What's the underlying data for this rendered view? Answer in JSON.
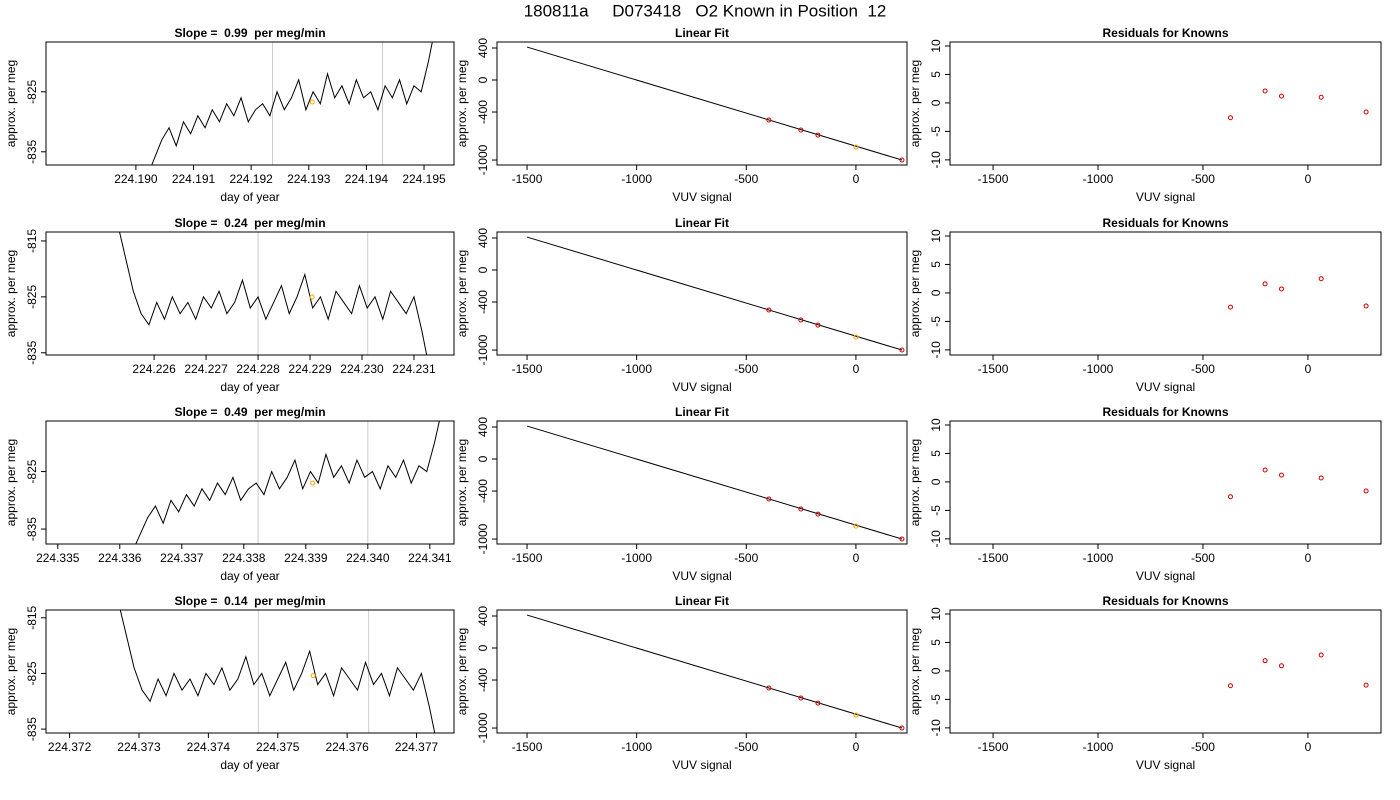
{
  "title": "180811a     D073418   O2 Known in Position  12",
  "chart_data": [
    {
      "type": "line",
      "title": "Slope =  0.99  per meg/min",
      "xlabel": "day of year",
      "ylabel": "approx. per meg",
      "xlim": [
        224.18844,
        224.19552
      ],
      "ylim": [
        -837.2,
        -816.7
      ],
      "xticks": [
        {
          "value": 224.19,
          "label": "224.190"
        },
        224.191,
        224.192,
        224.193,
        224.194,
        224.195
      ],
      "yticks": [
        -835,
        -825
      ],
      "x": [
        224.1902,
        224.190325,
        224.19045,
        224.190575,
        224.1907,
        224.190825,
        224.19095,
        224.191075,
        224.1912,
        224.191325,
        224.19145,
        224.191575,
        224.1917,
        224.191825,
        224.19195,
        224.192075,
        224.1922,
        224.192325,
        224.19245,
        224.192575,
        224.1927,
        224.192825,
        224.19295,
        224.193075,
        224.1932,
        224.193325,
        224.19345,
        224.193575,
        224.1937,
        224.193825,
        224.19395,
        224.194075,
        224.1942,
        224.194325,
        224.19445,
        224.194575,
        224.1947,
        224.194825,
        224.19495,
        224.195075,
        224.1952
      ],
      "values": [
        -839,
        -836,
        -833,
        -831,
        -834,
        -830,
        -832,
        -829,
        -831,
        -828,
        -830,
        -827,
        -829,
        -826,
        -830,
        -828,
        -827,
        -829,
        -825,
        -828,
        -826,
        -823,
        -828,
        -825,
        -827,
        -822,
        -826,
        -824,
        -827,
        -823,
        -826,
        -825,
        -828,
        -824,
        -826,
        -823,
        -827,
        -824,
        -825,
        -820,
        -814
      ],
      "color": "#000000",
      "vlines": [
        224.19237,
        224.19428
      ],
      "vline_color": "#cccccc",
      "highlight": {
        "x": 224.19306,
        "y": -826.7,
        "color": "#ffa500"
      }
    },
    {
      "type": "scatter",
      "title": "Linear Fit",
      "xlabel": "VUV signal",
      "ylabel": "approx. per meg",
      "xlim": [
        -1637,
        233
      ],
      "ylim": [
        -1062,
        475
      ],
      "xticks": [
        -1500,
        -1000,
        -500,
        0
      ],
      "yticks": [
        -1000,
        -400,
        0,
        400
      ],
      "x": [
        -397,
        -251,
        -173,
        0,
        210
      ],
      "values": [
        -500,
        -625,
        -688,
        -838,
        -1000
      ],
      "point_colors": [
        "#cc0000",
        "#cc0000",
        "#cc0000",
        "#ffa500",
        "#cc0000"
      ],
      "fit": {
        "x": [
          -1500,
          210
        ],
        "y": [
          412,
          -1000
        ],
        "color": "#000000"
      }
    },
    {
      "type": "scatter",
      "title": "Residuals for Knowns",
      "xlabel": "VUV signal",
      "ylabel": "approx. per meg",
      "xlim": [
        -1705,
        348
      ],
      "ylim": [
        -10.9,
        10.7
      ],
      "xticks": [
        -1500,
        -1000,
        -500,
        0
      ],
      "yticks": [
        -10,
        -5,
        0,
        5,
        10
      ],
      "x": [
        -369,
        -204,
        -126,
        63,
        277
      ],
      "values": [
        -2.6,
        2.1,
        1.2,
        1.0,
        -1.6
      ],
      "point_colors": [
        "#cc0000",
        "#cc0000",
        "#cc0000",
        "#cc0000",
        "#cc0000"
      ]
    },
    {
      "type": "line",
      "title": "Slope =  0.24  per meg/min",
      "xlabel": "day of year",
      "ylabel": "approx. per meg",
      "xlim": [
        224.22392,
        224.23177
      ],
      "ylim": [
        -835.4,
        -813.4
      ],
      "xticks": [
        224.226,
        224.227,
        224.228,
        224.229,
        {
          "value": 224.23,
          "label": "224.230"
        },
        224.231
      ],
      "yticks": [
        -835,
        -825,
        -815
      ],
      "x": [
        224.2253,
        224.22545,
        224.2256,
        224.22575,
        224.2259,
        224.22605,
        224.2262,
        224.22635,
        224.2265,
        224.22665,
        224.2268,
        224.22695,
        224.2271,
        224.22725,
        224.2274,
        224.22755,
        224.2277,
        224.22785,
        224.228,
        224.22815,
        224.2283,
        224.22845,
        224.2286,
        224.22875,
        224.2289,
        224.22905,
        224.2292,
        224.22935,
        224.2295,
        224.22965,
        224.2298,
        224.22995,
        224.2301,
        224.23025,
        224.2304,
        224.23055,
        224.2307,
        224.23085,
        224.231,
        224.23115,
        224.2313
      ],
      "values": [
        -812,
        -818,
        -824,
        -828,
        -830,
        -826,
        -829,
        -825,
        -828,
        -826,
        -829,
        -825,
        -827,
        -824,
        -828,
        -826,
        -822,
        -827,
        -825,
        -829,
        -826,
        -823,
        -828,
        -825,
        -821,
        -827,
        -825,
        -829,
        -824,
        -826,
        -828,
        -823,
        -827,
        -825,
        -829,
        -824,
        -826,
        -828,
        -825,
        -831,
        -838
      ],
      "color": "#000000",
      "vlines": [
        224.228,
        224.23011
      ],
      "vline_color": "#cccccc",
      "highlight": {
        "x": 224.22904,
        "y": -825,
        "color": "#ffa500"
      }
    },
    {
      "type": "scatter",
      "title": "Linear Fit",
      "xlabel": "VUV signal",
      "ylabel": "approx. per meg",
      "xlim": [
        -1637,
        233
      ],
      "ylim": [
        -1062,
        475
      ],
      "xticks": [
        -1500,
        -1000,
        -500,
        0
      ],
      "yticks": [
        -1000,
        -400,
        0,
        400
      ],
      "x": [
        -397,
        -251,
        -173,
        0,
        210
      ],
      "values": [
        -500,
        -625,
        -688,
        -838,
        -1000
      ],
      "point_colors": [
        "#cc0000",
        "#cc0000",
        "#cc0000",
        "#ffa500",
        "#cc0000"
      ],
      "fit": {
        "x": [
          -1500,
          210
        ],
        "y": [
          412,
          -1000
        ],
        "color": "#000000"
      }
    },
    {
      "type": "scatter",
      "title": "Residuals for Knowns",
      "xlabel": "VUV signal",
      "ylabel": "approx. per meg",
      "xlim": [
        -1705,
        348
      ],
      "ylim": [
        -10.9,
        10.7
      ],
      "xticks": [
        -1500,
        -1000,
        -500,
        0
      ],
      "yticks": [
        -10,
        -5,
        0,
        5,
        10
      ],
      "x": [
        -369,
        -204,
        -126,
        63,
        277
      ],
      "values": [
        -2.5,
        1.6,
        0.7,
        2.5,
        -2.3
      ],
      "point_colors": [
        "#cc0000",
        "#cc0000",
        "#cc0000",
        "#cc0000",
        "#cc0000"
      ]
    },
    {
      "type": "line",
      "title": "Slope =  0.49  per meg/min",
      "xlabel": "day of year",
      "ylabel": "approx. per meg",
      "xlim": [
        224.33481,
        224.34139
      ],
      "ylim": [
        -837.6,
        -816.2
      ],
      "xticks": [
        224.335,
        224.336,
        224.337,
        224.338,
        224.339,
        {
          "value": 224.34,
          "label": "224.340"
        },
        224.341
      ],
      "yticks": [
        -835,
        -825
      ],
      "x": [
        224.3362,
        224.336325,
        224.33645,
        224.336575,
        224.3367,
        224.336825,
        224.33695,
        224.337075,
        224.3372,
        224.337325,
        224.33745,
        224.337575,
        224.3377,
        224.337825,
        224.33795,
        224.338075,
        224.3382,
        224.338325,
        224.33845,
        224.338575,
        224.3387,
        224.338825,
        224.33895,
        224.339075,
        224.3392,
        224.339325,
        224.33945,
        224.339575,
        224.3397,
        224.339825,
        224.33995,
        224.340075,
        224.3402,
        224.340325,
        224.34045,
        224.340575,
        224.3407,
        224.340825,
        224.34095,
        224.341075,
        224.3412
      ],
      "values": [
        -839,
        -836,
        -833,
        -831,
        -834,
        -830,
        -832,
        -829,
        -831,
        -828,
        -830,
        -827,
        -829,
        -826,
        -830,
        -828,
        -827,
        -829,
        -825,
        -828,
        -826,
        -823,
        -828,
        -825,
        -827,
        -822,
        -826,
        -824,
        -827,
        -823,
        -826,
        -825,
        -828,
        -824,
        -826,
        -823,
        -827,
        -824,
        -825,
        -820,
        -814
      ],
      "color": "#000000",
      "vlines": [
        224.33823,
        224.34
      ],
      "vline_color": "#cccccc",
      "highlight": {
        "x": 224.33911,
        "y": -827,
        "color": "#ffa500"
      }
    },
    {
      "type": "scatter",
      "title": "Linear Fit",
      "xlabel": "VUV signal",
      "ylabel": "approx. per meg",
      "xlim": [
        -1637,
        233
      ],
      "ylim": [
        -1062,
        475
      ],
      "xticks": [
        -1500,
        -1000,
        -500,
        0
      ],
      "yticks": [
        -1000,
        -400,
        0,
        400
      ],
      "x": [
        -397,
        -251,
        -173,
        0,
        210
      ],
      "values": [
        -500,
        -625,
        -688,
        -838,
        -1000
      ],
      "point_colors": [
        "#cc0000",
        "#cc0000",
        "#cc0000",
        "#ffa500",
        "#cc0000"
      ],
      "fit": {
        "x": [
          -1500,
          210
        ],
        "y": [
          412,
          -1000
        ],
        "color": "#000000"
      }
    },
    {
      "type": "scatter",
      "title": "Residuals for Knowns",
      "xlabel": "VUV signal",
      "ylabel": "approx. per meg",
      "xlim": [
        -1705,
        348
      ],
      "ylim": [
        -10.9,
        10.7
      ],
      "xticks": [
        -1500,
        -1000,
        -500,
        0
      ],
      "yticks": [
        -10,
        -5,
        0,
        5,
        10
      ],
      "x": [
        -369,
        -204,
        -126,
        63,
        277
      ],
      "values": [
        -2.6,
        2.1,
        1.2,
        0.7,
        -1.6
      ],
      "point_colors": [
        "#cc0000",
        "#cc0000",
        "#cc0000",
        "#cc0000",
        "#cc0000"
      ]
    },
    {
      "type": "line",
      "title": "Slope =  0.14  per meg/min",
      "xlabel": "day of year",
      "ylabel": "approx. per meg",
      "xlim": [
        224.37166,
        224.37754
      ],
      "ylim": [
        -835.7,
        -813.6
      ],
      "xticks": [
        224.372,
        224.373,
        224.374,
        224.375,
        224.376,
        224.377
      ],
      "yticks": [
        -835,
        -825,
        -815
      ],
      "x": [
        224.3727,
        224.372815,
        224.37293,
        224.373045,
        224.37316,
        224.373275,
        224.37339,
        224.373505,
        224.37362,
        224.373735,
        224.37385,
        224.373965,
        224.37408,
        224.374195,
        224.37431,
        224.374425,
        224.37454,
        224.374655,
        224.37477,
        224.374885,
        224.375,
        224.375115,
        224.37523,
        224.375345,
        224.37546,
        224.375575,
        224.37569,
        224.375805,
        224.37592,
        224.376035,
        224.37615,
        224.376265,
        224.37638,
        224.376495,
        224.37661,
        224.376725,
        224.37684,
        224.376955,
        224.37707,
        224.377185,
        224.3773
      ],
      "values": [
        -812,
        -818,
        -824,
        -828,
        -830,
        -826,
        -829,
        -825,
        -828,
        -826,
        -829,
        -825,
        -827,
        -824,
        -828,
        -826,
        -822,
        -827,
        -825,
        -829,
        -826,
        -823,
        -828,
        -825,
        -821,
        -827,
        -825,
        -829,
        -824,
        -826,
        -828,
        -823,
        -827,
        -825,
        -829,
        -824,
        -826,
        -828,
        -825,
        -831,
        -838
      ],
      "color": "#000000",
      "vlines": [
        224.37472,
        224.37631
      ],
      "vline_color": "#cccccc",
      "highlight": {
        "x": 224.37551,
        "y": -825.4,
        "color": "#ffa500"
      }
    },
    {
      "type": "scatter",
      "title": "Linear Fit",
      "xlabel": "VUV signal",
      "ylabel": "approx. per meg",
      "xlim": [
        -1637,
        233
      ],
      "ylim": [
        -1062,
        475
      ],
      "xticks": [
        -1500,
        -1000,
        -500,
        0
      ],
      "yticks": [
        -1000,
        -400,
        0,
        400
      ],
      "x": [
        -397,
        -251,
        -173,
        0,
        210
      ],
      "values": [
        -500,
        -625,
        -688,
        -838,
        -1000
      ],
      "point_colors": [
        "#cc0000",
        "#cc0000",
        "#cc0000",
        "#ffa500",
        "#cc0000"
      ],
      "fit": {
        "x": [
          -1500,
          210
        ],
        "y": [
          412,
          -1000
        ],
        "color": "#000000"
      }
    },
    {
      "type": "scatter",
      "title": "Residuals for Knowns",
      "xlabel": "VUV signal",
      "ylabel": "approx. per meg",
      "xlim": [
        -1705,
        348
      ],
      "ylim": [
        -10.9,
        10.7
      ],
      "xticks": [
        -1500,
        -1000,
        -500,
        0
      ],
      "yticks": [
        -10,
        -5,
        0,
        5,
        10
      ],
      "x": [
        -369,
        -204,
        -126,
        63,
        277
      ],
      "values": [
        -2.6,
        1.8,
        0.9,
        2.8,
        -2.5
      ],
      "point_colors": [
        "#cc0000",
        "#cc0000",
        "#cc0000",
        "#cc0000",
        "#cc0000"
      ]
    }
  ]
}
